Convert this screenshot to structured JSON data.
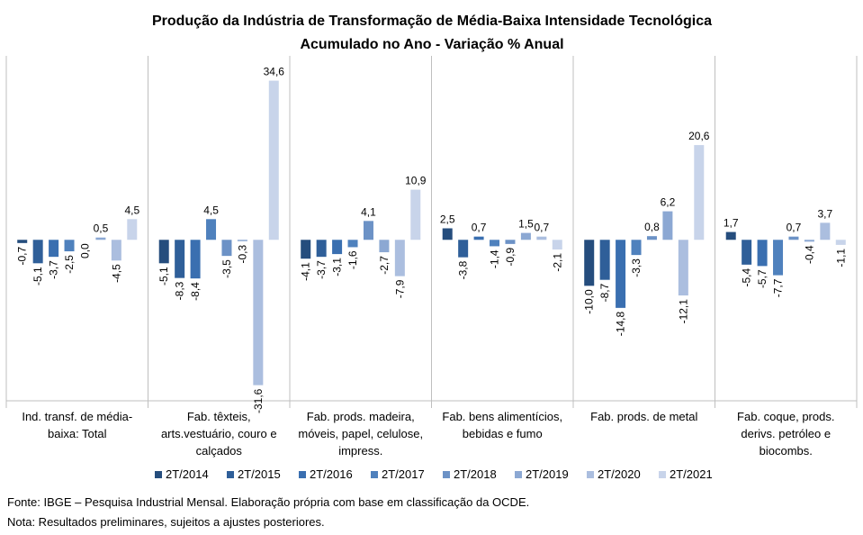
{
  "chart_data": {
    "type": "bar",
    "title": "Produção da Indústria de Transformação de Média-Baixa Intensidade Tecnológica",
    "subtitle": "Acumulado no Ano - Variação % Anual",
    "categories": [
      "Ind. transf. de média-baixa: Total",
      "Fab. têxteis, arts.vestuário, couro e calçados",
      "Fab. prods. madeira, móveis, papel, celulose, impress.",
      "Fab. bens alimentícios, bebidas e fumo",
      "Fab. prods. de metal",
      "Fab. coque, prods. derivs. petróleo e biocombs."
    ],
    "ylim": [
      -35,
      40
    ],
    "series": [
      {
        "name": "2T/2014",
        "color": "#254d7d",
        "values": [
          -0.7,
          -5.1,
          -4.1,
          2.5,
          -10.0,
          1.7
        ],
        "value_labels": [
          "-0,7",
          "-5,1",
          "-4,1",
          "2,5",
          "-10,0",
          "1,7"
        ]
      },
      {
        "name": "2T/2015",
        "color": "#2f5f99",
        "values": [
          -5.1,
          -8.3,
          -3.7,
          -3.8,
          -8.7,
          -5.4
        ],
        "value_labels": [
          "-5,1",
          "-8,3",
          "-3,7",
          "-3,8",
          "-8,7",
          "-5,4"
        ]
      },
      {
        "name": "2T/2016",
        "color": "#3a6fb0",
        "values": [
          -3.7,
          -8.4,
          -3.1,
          0.7,
          -14.8,
          -5.7
        ],
        "value_labels": [
          "-3,7",
          "-8,4",
          "-3,1",
          "0,7",
          "-14,8",
          "-5,7"
        ]
      },
      {
        "name": "2T/2017",
        "color": "#4f81bd",
        "values": [
          -2.5,
          4.5,
          -1.6,
          -1.4,
          -3.3,
          -7.7
        ],
        "value_labels": [
          "-2,5",
          "4,5",
          "-1,6",
          "-1,4",
          "-3,3",
          "-7,7"
        ]
      },
      {
        "name": "2T/2018",
        "color": "#6c92c6",
        "values": [
          0.0,
          -3.5,
          4.1,
          -0.9,
          0.8,
          0.7
        ],
        "value_labels": [
          "0,0",
          "-3,5",
          "4,1",
          "-0,9",
          "0,8",
          "0,7"
        ]
      },
      {
        "name": "2T/2019",
        "color": "#8ca8d3",
        "values": [
          0.5,
          -0.3,
          -2.7,
          1.5,
          6.2,
          -0.4
        ],
        "value_labels": [
          "0,5",
          "-0,3",
          "-2,7",
          "1,5",
          "6,2",
          "-0,4"
        ]
      },
      {
        "name": "2T/2020",
        "color": "#abbedf",
        "values": [
          -4.5,
          -31.6,
          -7.9,
          0.7,
          -12.1,
          3.7
        ],
        "value_labels": [
          "-4,5",
          "-31,6",
          "-7,9",
          "0,7",
          "-12,1",
          "3,7"
        ]
      },
      {
        "name": "2T/2021",
        "color": "#c8d4ea",
        "values": [
          4.5,
          34.6,
          10.9,
          -2.1,
          20.6,
          -1.1
        ],
        "value_labels": [
          "4,5",
          "34,6",
          "10,9",
          "-2,1",
          "20,6",
          "-1,1"
        ]
      }
    ],
    "legend": "bottom",
    "notes": [
      "Fonte: IBGE – Pesquisa Industrial Mensal. Elaboração própria com base em classificação da OCDE.",
      "Nota: Resultados preliminares, sujeitos a ajustes posteriores."
    ]
  }
}
